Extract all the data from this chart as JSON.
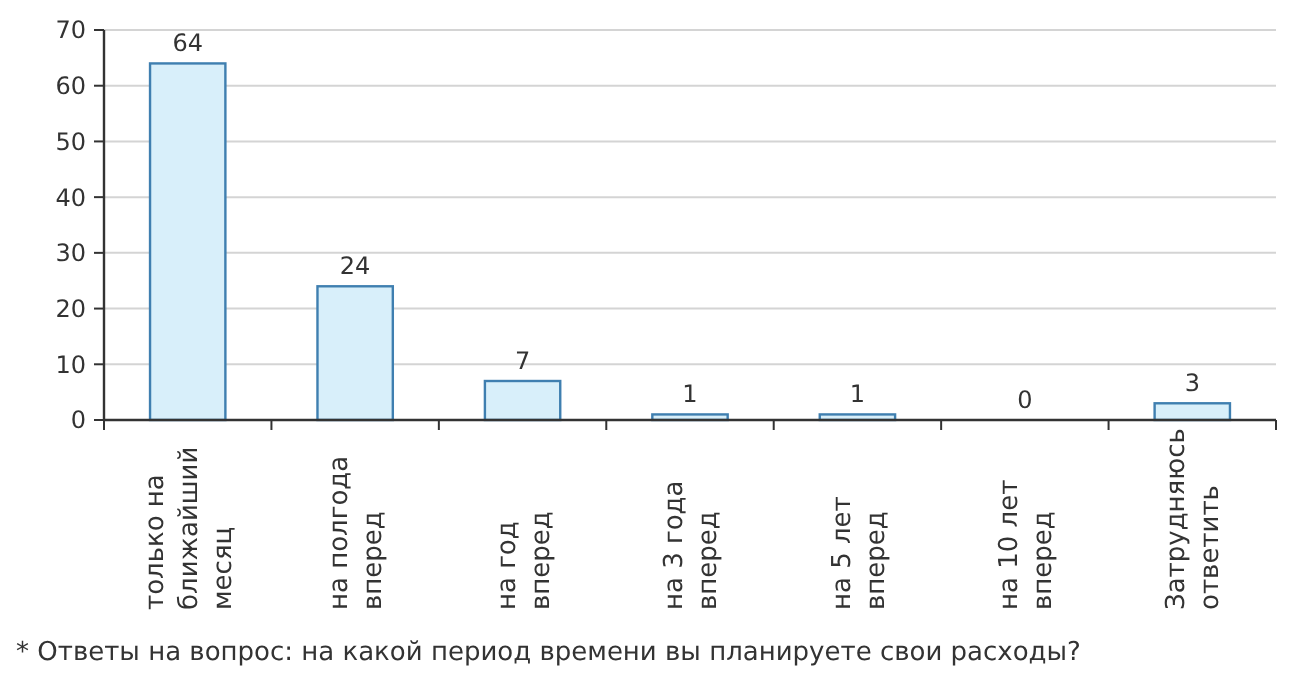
{
  "chart_data": {
    "type": "bar",
    "categories": [
      "только на\nближайший\nмесяц",
      "на полгода\nвперед",
      "на год\nвперед",
      "на 3 года\nвперед",
      "на 5 лет\nвперед",
      "на 10 лет\nвперед",
      "Затрудняюсь\nответить"
    ],
    "values": [
      64,
      24,
      7,
      1,
      1,
      0,
      3
    ],
    "color": "#d8effa",
    "ylim": [
      0,
      70
    ],
    "yticks": [
      0,
      10,
      20,
      30,
      40,
      50,
      60,
      70
    ],
    "grid": "y",
    "data_labels": true,
    "annotations": [
      "* Ответы на вопрос: на какой период времени вы планируете свои расходы?"
    ]
  }
}
